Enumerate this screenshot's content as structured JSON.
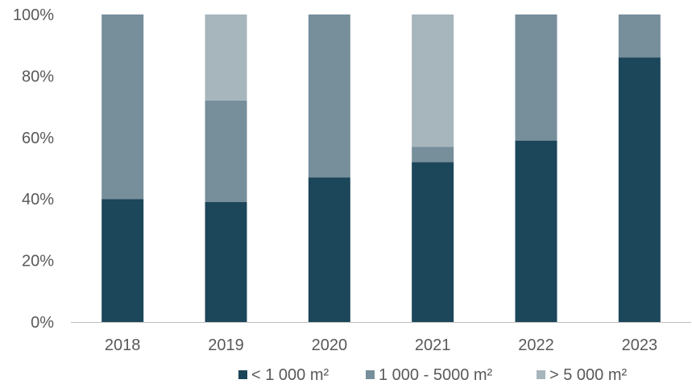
{
  "chart_data": {
    "type": "bar",
    "stacked": true,
    "percent": true,
    "categories": [
      "2018",
      "2019",
      "2020",
      "2021",
      "2022",
      "2023"
    ],
    "series": [
      {
        "name": "< 1 000 m²",
        "color": "#1c4659",
        "values": [
          40,
          39,
          47,
          52,
          59,
          86
        ]
      },
      {
        "name": "1 000 - 5000 m²",
        "color": "#778e9b",
        "values": [
          60,
          33,
          53,
          5,
          41,
          14
        ]
      },
      {
        "name": "> 5 000 m²",
        "color": "#a7b5bd",
        "values": [
          0,
          28,
          0,
          43,
          0,
          0
        ]
      }
    ],
    "ylim": [
      0,
      100
    ],
    "yticks": [
      "0%",
      "20%",
      "40%",
      "60%",
      "80%",
      "100%"
    ],
    "ytick_values": [
      0,
      20,
      40,
      60,
      80,
      100
    ],
    "grid": false,
    "legend_position": "bottom",
    "title": "",
    "xlabel": "",
    "ylabel": ""
  },
  "colors": {
    "axis": "#bfbfbf",
    "text": "#595959"
  }
}
